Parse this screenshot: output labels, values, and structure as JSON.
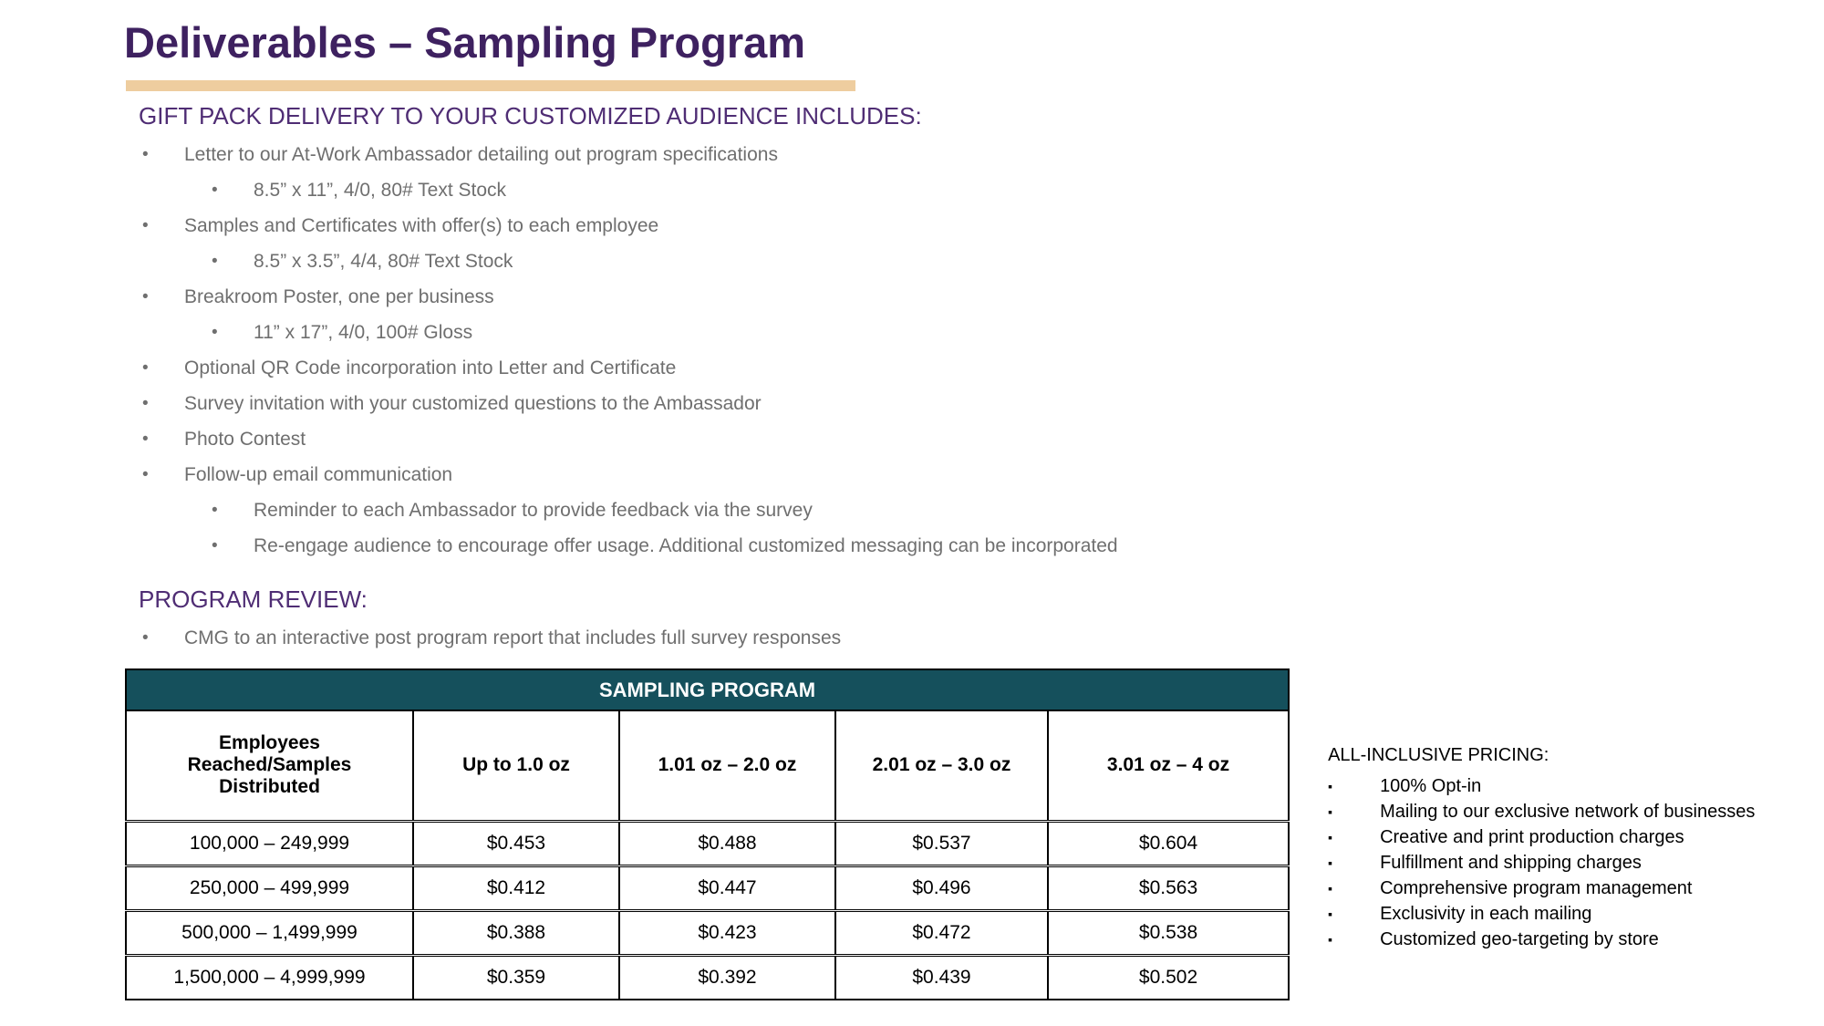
{
  "title": "Deliverables – Sampling Program",
  "gift_pack": {
    "heading": "GIFT PACK DELIVERY TO YOUR CUSTOMIZED AUDIENCE INCLUDES:",
    "items": [
      {
        "level": 1,
        "text": "Letter to our At-Work Ambassador detailing out program specifications"
      },
      {
        "level": 2,
        "text": "8.5” x 11”, 4/0, 80# Text Stock"
      },
      {
        "level": 1,
        "text": "Samples and Certificates with offer(s) to each employee"
      },
      {
        "level": 2,
        "text": "8.5” x 3.5”, 4/4, 80# Text Stock"
      },
      {
        "level": 1,
        "text": "Breakroom Poster, one per business"
      },
      {
        "level": 2,
        "text": "11” x 17”, 4/0, 100# Gloss"
      },
      {
        "level": 1,
        "text": "Optional QR Code incorporation into Letter and Certificate"
      },
      {
        "level": 1,
        "text": "Survey invitation with your customized questions to the Ambassador"
      },
      {
        "level": 1,
        "text": "Photo Contest"
      },
      {
        "level": 1,
        "text": "Follow-up email communication"
      },
      {
        "level": 2,
        "text": "Reminder to each Ambassador to provide feedback via the survey"
      },
      {
        "level": 2,
        "text": "Re-engage audience to encourage offer usage. Additional customized messaging can be incorporated"
      }
    ]
  },
  "program_review": {
    "heading": "PROGRAM REVIEW:",
    "items": [
      {
        "level": 1,
        "text": "CMG to an interactive post program report that includes full survey responses"
      }
    ]
  },
  "table": {
    "title": "SAMPLING PROGRAM",
    "columns": [
      "Employees Reached/Samples Distributed",
      "Up to 1.0 oz",
      "1.01 oz – 2.0 oz",
      "2.01 oz – 3.0 oz",
      "3.01 oz – 4 oz"
    ],
    "rows": [
      [
        "100,000 – 249,999",
        "$0.453",
        "$0.488",
        "$0.537",
        "$0.604"
      ],
      [
        "250,000 – 499,999",
        "$0.412",
        "$0.447",
        "$0.496",
        "$0.563"
      ],
      [
        "500,000 – 1,499,999",
        "$0.388",
        "$0.423",
        "$0.472",
        "$0.538"
      ],
      [
        "1,500,000 – 4,999,999",
        "$0.359",
        "$0.392",
        "$0.439",
        "$0.502"
      ]
    ]
  },
  "pricing": {
    "heading": "ALL-INCLUSIVE PRICING:",
    "items": [
      "100% Opt-in",
      "Mailing to our exclusive network of businesses",
      "Creative and print production charges",
      "Fulfillment and shipping charges",
      "Comprehensive program management",
      "Exclusivity in each mailing",
      "Customized geo-targeting by store"
    ]
  },
  "colors": {
    "title_purple": "#3E2160",
    "heading_purple": "#4F2D74",
    "underline_tan": "#EECD9F",
    "body_gray": "#6F6F6F",
    "table_header_teal": "#15505C"
  }
}
